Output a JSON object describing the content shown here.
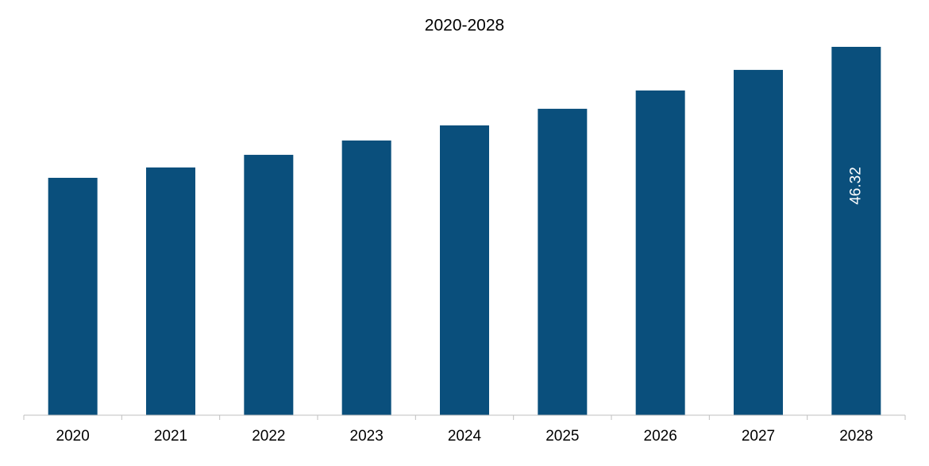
{
  "chart_data": {
    "type": "bar",
    "title": "2020-2028",
    "categories": [
      "2020",
      "2021",
      "2022",
      "2023",
      "2024",
      "2025",
      "2026",
      "2027",
      "2028"
    ],
    "values": [
      29.85,
      31.15,
      32.74,
      34.54,
      36.44,
      38.53,
      40.83,
      43.42,
      46.32
    ],
    "value_labels": [
      null,
      null,
      null,
      null,
      null,
      null,
      null,
      null,
      "46.32"
    ],
    "color": "#0a4f7c"
  }
}
